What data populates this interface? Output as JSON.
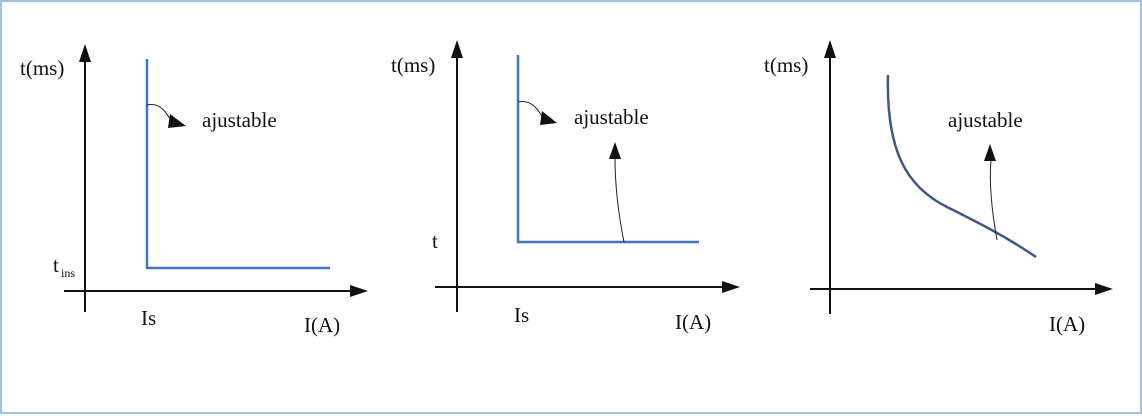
{
  "diagrams": [
    {
      "y_label": "t(ms)",
      "x_label": "I(A)",
      "x_tick": "Is",
      "y_tick_main": "t",
      "y_tick_sub": "ins",
      "annotation": "ajustable"
    },
    {
      "y_label": "t(ms)",
      "x_label": "I(A)",
      "x_tick": "Is",
      "y_tick": "t",
      "annotation": "ajustable"
    },
    {
      "y_label": "t(ms)",
      "x_label": "I(A)",
      "annotation": "ajustable"
    }
  ],
  "colors": {
    "frame_border": "#9dc3e6",
    "curve": "#4472c4",
    "curve_dark": "#3a5a85",
    "axis": "#111111"
  }
}
